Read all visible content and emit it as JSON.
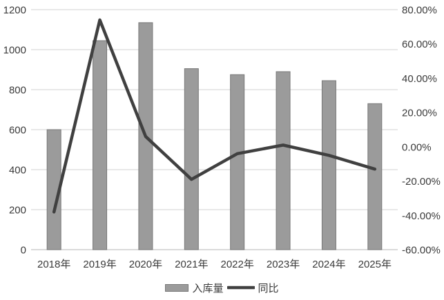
{
  "chart_data": {
    "type": "bar+line combo",
    "title": "",
    "categories": [
      "2018年",
      "2019年",
      "2020年",
      "2021年",
      "2022年",
      "2023年",
      "2024年",
      "2025年"
    ],
    "series": [
      {
        "name": "入库量",
        "type": "bar",
        "axis": "left",
        "values": [
          600,
          1045,
          1135,
          905,
          875,
          890,
          845,
          730
        ],
        "fill": "#9b9b9b",
        "stroke": "#787878"
      },
      {
        "name": "同比",
        "type": "line",
        "axis": "right",
        "values_pct": [
          -38,
          74,
          6,
          -19,
          -4,
          1,
          -5,
          -13
        ],
        "color": "#404040"
      }
    ],
    "left_axis": {
      "min": 0,
      "max": 1200,
      "step": 200,
      "tick_values": [
        1200,
        1000,
        800,
        600,
        400,
        200,
        0
      ],
      "tick_labels": [
        "1200",
        "1000",
        "800",
        "600",
        "400",
        "200",
        "0"
      ]
    },
    "right_axis": {
      "min": -60,
      "max": 80,
      "step": 20,
      "tick_values": [
        80,
        60,
        40,
        20,
        0,
        -20,
        -40,
        -60
      ],
      "tick_labels": [
        "80.00%",
        "60.00%",
        "40.00%",
        "20.00%",
        "0.00%",
        "-20.00%",
        "-40.00%",
        "-60.00%"
      ]
    },
    "grid": true,
    "legend_position": "bottom",
    "colors": {
      "background": "#ffffff",
      "gridline": "#d9d9d9",
      "axis_line": "#c3c3c3",
      "text": "#3a3a3a",
      "bar_fill": "#9b9b9b",
      "bar_stroke": "#787878",
      "line": "#404040"
    }
  }
}
